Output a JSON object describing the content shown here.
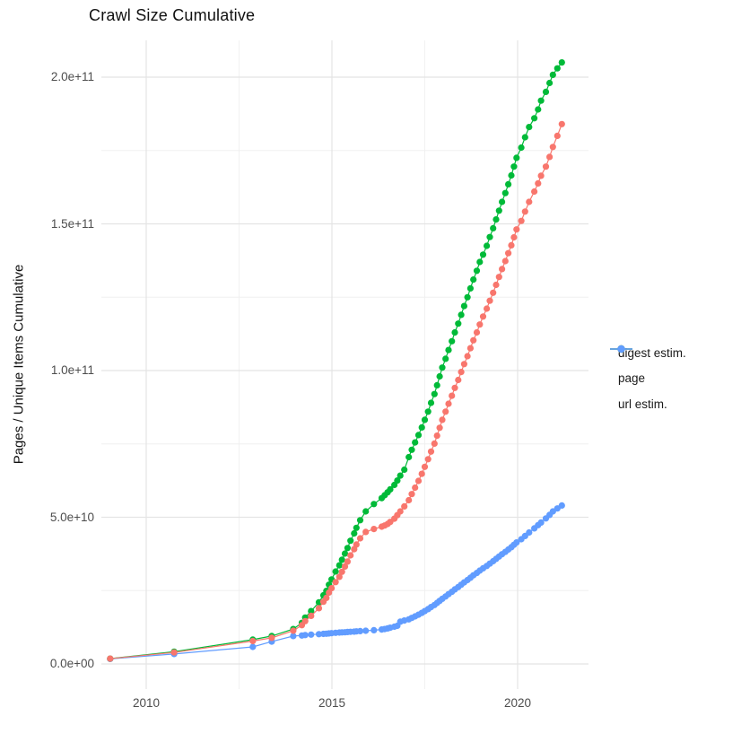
{
  "title": "Crawl Size Cumulative",
  "chart_data": {
    "type": "line",
    "title": "Crawl Size Cumulative",
    "xlabel": "",
    "ylabel": "Pages / Unique Items Cumulative",
    "value_unit": "billions (1e9) of pages / unique items, cumulative",
    "x_unit": "calendar year (decimal)",
    "xlim": [
      2008.8,
      2021.9
    ],
    "ylim_e9": [
      0,
      220
    ],
    "grid": "major and minor, light gray on white",
    "legend_position": "right",
    "x_ticks": [
      2010,
      2015,
      2020
    ],
    "x_tick_labels": [
      "2010",
      "2015",
      "2020"
    ],
    "x_minor_ticks": [
      2012.5,
      2017.5
    ],
    "y_ticks_e9": [
      0,
      50,
      100,
      150,
      200
    ],
    "y_tick_labels": [
      "0.0e+00",
      "5.0e+10",
      "1.0e+11",
      "1.5e+11",
      "2.0e+11"
    ],
    "y_minor_ticks_e9": [
      25,
      75,
      125,
      175
    ],
    "x": [
      2009.03,
      2010.75,
      2012.87,
      2013.38,
      2013.96,
      2014.19,
      2014.28,
      2014.44,
      2014.65,
      2014.77,
      2014.85,
      2014.92,
      2014.99,
      2015.1,
      2015.2,
      2015.27,
      2015.35,
      2015.42,
      2015.5,
      2015.6,
      2015.66,
      2015.76,
      2015.91,
      2016.13,
      2016.34,
      2016.42,
      2016.5,
      2016.57,
      2016.68,
      2016.76,
      2016.84,
      2016.95,
      2017.07,
      2017.15,
      2017.24,
      2017.33,
      2017.42,
      2017.5,
      2017.59,
      2017.67,
      2017.76,
      2017.83,
      2017.9,
      2017.97,
      2018.06,
      2018.14,
      2018.23,
      2018.31,
      2018.4,
      2018.48,
      2018.56,
      2018.65,
      2018.73,
      2018.81,
      2018.9,
      2018.98,
      2019.07,
      2019.17,
      2019.25,
      2019.34,
      2019.42,
      2019.5,
      2019.58,
      2019.67,
      2019.75,
      2019.83,
      2019.9,
      2019.97,
      2020.1,
      2020.2,
      2020.31,
      2020.45,
      2020.55,
      2020.63,
      2020.76,
      2020.86,
      2020.95,
      2021.07,
      2021.19
    ],
    "series": [
      {
        "name": "digest estim.",
        "color": "#F8766D",
        "values_e9": [
          1.8,
          3.9,
          7.8,
          8.9,
          11.3,
          13.2,
          14.6,
          16.4,
          19.0,
          21.2,
          22.5,
          24.3,
          25.8,
          27.9,
          29.7,
          31.4,
          33.2,
          34.9,
          37.0,
          39.1,
          40.7,
          42.8,
          45.0,
          46.0,
          46.8,
          47.2,
          47.7,
          48.4,
          49.5,
          50.7,
          52.0,
          53.7,
          55.8,
          57.9,
          60.1,
          62.4,
          64.8,
          67.2,
          69.8,
          72.4,
          75.1,
          77.8,
          80.5,
          83.2,
          86.0,
          88.7,
          91.4,
          94.1,
          96.8,
          99.5,
          102.2,
          104.9,
          107.6,
          110.3,
          113.0,
          115.7,
          118.4,
          121.1,
          123.8,
          126.5,
          129.2,
          131.9,
          134.6,
          137.3,
          140.0,
          142.7,
          145.4,
          148.1,
          151.0,
          154.2,
          157.5,
          161.0,
          163.8,
          166.4,
          169.5,
          172.8,
          176.2,
          180.0,
          184.0
        ]
      },
      {
        "name": "page",
        "color": "#00BA38",
        "values_e9": [
          1.8,
          4.2,
          8.3,
          9.5,
          11.9,
          14.0,
          15.8,
          18.0,
          21.0,
          23.4,
          24.9,
          27.0,
          28.8,
          31.5,
          33.6,
          35.5,
          37.6,
          39.5,
          42.0,
          44.5,
          46.4,
          49.0,
          52.0,
          54.5,
          56.5,
          57.5,
          58.5,
          59.5,
          61.0,
          62.5,
          64.2,
          66.2,
          70.5,
          73.0,
          75.5,
          78.0,
          80.6,
          83.2,
          86.0,
          89.0,
          92.0,
          95.0,
          98.0,
          101.0,
          104.0,
          107.0,
          110.0,
          113.0,
          116.0,
          119.0,
          122.0,
          125.0,
          128.0,
          131.0,
          134.0,
          137.0,
          139.5,
          142.5,
          145.5,
          148.5,
          151.5,
          154.5,
          157.5,
          160.5,
          163.5,
          166.5,
          169.5,
          172.5,
          176.0,
          179.5,
          183.0,
          186.0,
          189.0,
          192.0,
          195.0,
          198.0,
          200.8,
          203.0,
          205.0
        ]
      },
      {
        "name": "url estim.",
        "color": "#619CFF",
        "values_e9": [
          1.7,
          3.4,
          5.8,
          7.6,
          9.5,
          9.7,
          9.85,
          10.0,
          10.15,
          10.25,
          10.3,
          10.4,
          10.5,
          10.6,
          10.7,
          10.75,
          10.8,
          10.9,
          10.95,
          11.0,
          11.1,
          11.2,
          11.3,
          11.5,
          11.75,
          11.9,
          12.1,
          12.35,
          12.7,
          13.0,
          14.4,
          14.8,
          15.2,
          15.7,
          16.2,
          16.8,
          17.4,
          18.0,
          18.7,
          19.4,
          20.1,
          20.8,
          21.5,
          22.2,
          23.0,
          23.8,
          24.6,
          25.4,
          26.2,
          27.0,
          27.8,
          28.6,
          29.4,
          30.2,
          31.0,
          31.8,
          32.6,
          33.4,
          34.2,
          35.0,
          35.8,
          36.6,
          37.4,
          38.2,
          39.0,
          39.8,
          40.6,
          41.4,
          42.5,
          43.6,
          44.8,
          46.2,
          47.3,
          48.2,
          49.6,
          50.8,
          52.0,
          53.0,
          54.0
        ]
      }
    ]
  }
}
